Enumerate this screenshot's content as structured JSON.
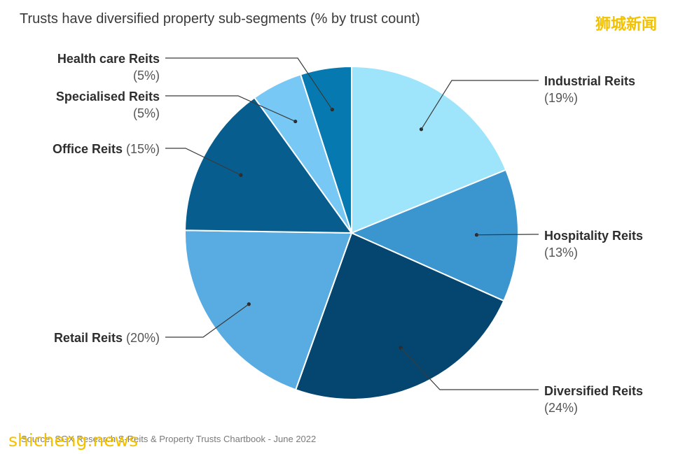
{
  "chart_data": {
    "type": "pie",
    "title": "Trusts have diversified property sub-segments (% by trust count)",
    "source": "Source: SGX Research S-Reits & Property Trusts Chartbook - June 2022",
    "start": "12 o'clock, clockwise",
    "slices": [
      {
        "label": "Industrial Reits",
        "value": 19,
        "display": "(19%)",
        "color": "#9ee4fb"
      },
      {
        "label": "Hospitality Reits",
        "value": 13,
        "display": "(13%)",
        "color": "#3b95cf"
      },
      {
        "label": "Diversified Reits",
        "value": 24,
        "display": "(24%)",
        "color": "#04466f"
      },
      {
        "label": "Retail Reits",
        "value": 20,
        "display": "(20%)",
        "color": "#59ace2"
      },
      {
        "label": "Office Reits",
        "value": 15,
        "display": "(15%)",
        "color": "#075d8e"
      },
      {
        "label": "Specialised Reits",
        "value": 5,
        "display": "(5%)",
        "color": "#78c8f5"
      },
      {
        "label": "Health care Reits",
        "value": 5,
        "display": "(5%)",
        "color": "#0679b0"
      }
    ]
  },
  "watermark": {
    "top_right": "狮城新闻",
    "bottom_left": "shicheng.news"
  }
}
